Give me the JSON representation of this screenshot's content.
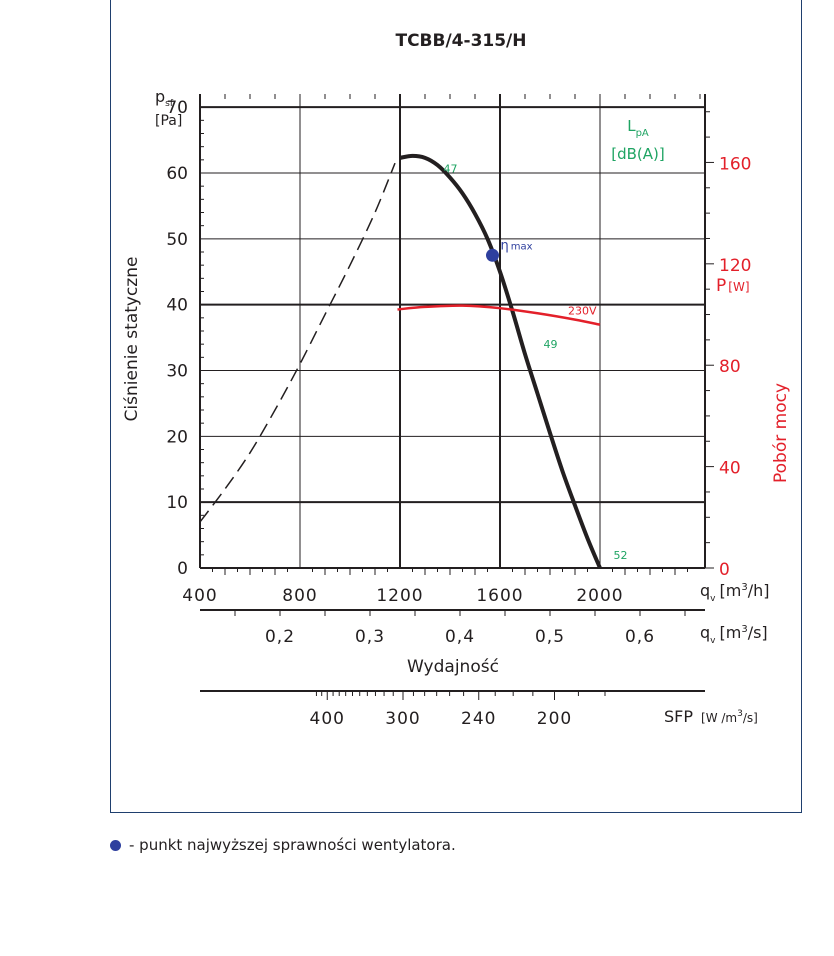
{
  "chart_data": {
    "type": "line",
    "title": "TCBB/4-315/H",
    "y_axis_left": {
      "symbol": "p",
      "subscript": "sf",
      "unit": "[Pa]",
      "label": "Ciśnienie statyczne",
      "ticks": [
        0,
        10,
        20,
        30,
        40,
        50,
        60,
        70
      ],
      "range": [
        0,
        72
      ]
    },
    "y_axis_right": {
      "symbol": "P",
      "unit": "[W]",
      "label": "Pobór mocy",
      "ticks": [
        0,
        40,
        80,
        120,
        160
      ],
      "range": [
        0,
        187
      ]
    },
    "x_axis_m3h": {
      "symbol": "q",
      "subscript": "v",
      "unit_prefix": "[m",
      "unit_sup": "3",
      "unit_suffix": "/h]",
      "ticks": [
        400,
        800,
        1200,
        1600,
        2000
      ],
      "range": [
        400,
        2420
      ]
    },
    "x_axis_m3s": {
      "symbol": "q",
      "subscript": "v",
      "unit_prefix": "[m",
      "unit_sup": "3",
      "unit_suffix": "/s]",
      "ticks": [
        "0,2",
        "0,3",
        "0,4",
        "0,5",
        "0,6"
      ],
      "tick_values": [
        0.2,
        0.3,
        0.4,
        0.5,
        0.6
      ],
      "xlabel": "Wydajność"
    },
    "sfp_axis": {
      "symbol": "SFP",
      "unit_prefix": "[W /m",
      "unit_sup": "3",
      "unit_suffix": "/s]",
      "ticks": [
        400,
        300,
        240,
        200
      ]
    },
    "lpa_label": {
      "symbol": "L",
      "subscript": "pA",
      "unit": "[dB(A)]"
    },
    "series": [
      {
        "name": "",
        "kind": "pressure-stable",
        "x": [
          1200,
          1250,
          1300,
          1350,
          1400,
          1450,
          1500,
          1550,
          1600,
          1650,
          1700,
          1750,
          1800,
          1850,
          1900,
          1950,
          2000
        ],
        "y": [
          62.3,
          62.6,
          62.3,
          61.2,
          59.3,
          56.9,
          53.8,
          50.0,
          45.0,
          39.0,
          32.5,
          26.5,
          20.5,
          14.7,
          9.5,
          4.5,
          0
        ]
      },
      {
        "name": "",
        "kind": "pressure-unstable",
        "x": [
          400,
          500,
          600,
          700,
          800,
          900,
          1000,
          1100,
          1180
        ],
        "y": [
          7.0,
          12.0,
          17.5,
          24.0,
          31.0,
          38.5,
          46.0,
          54.0,
          61.5
        ]
      },
      {
        "name": "230V",
        "kind": "power",
        "x": [
          1190,
          1300,
          1450,
          1600,
          1750,
          1900,
          2000
        ],
        "y": [
          102,
          103,
          103.5,
          102.5,
          100.5,
          98,
          96
        ]
      }
    ],
    "lpa_points": [
      {
        "label": "47",
        "x": 1350,
        "y": 60.7
      },
      {
        "label": "49",
        "x": 1750,
        "y": 34
      },
      {
        "label": "52",
        "x": 2030,
        "y": 2
      }
    ],
    "max_efficiency_point": {
      "label": "η",
      "label_sub": "max",
      "x": 1570,
      "y": 47.5
    },
    "colors": {
      "pressure": "#231f20",
      "power": "#e3202a",
      "lpa": "#1fa463",
      "efficiency": "#2e3f9e",
      "frame": "#1f3f6e"
    }
  },
  "legend": {
    "text": "- punkt najwyższej sprawności wentylatora."
  }
}
